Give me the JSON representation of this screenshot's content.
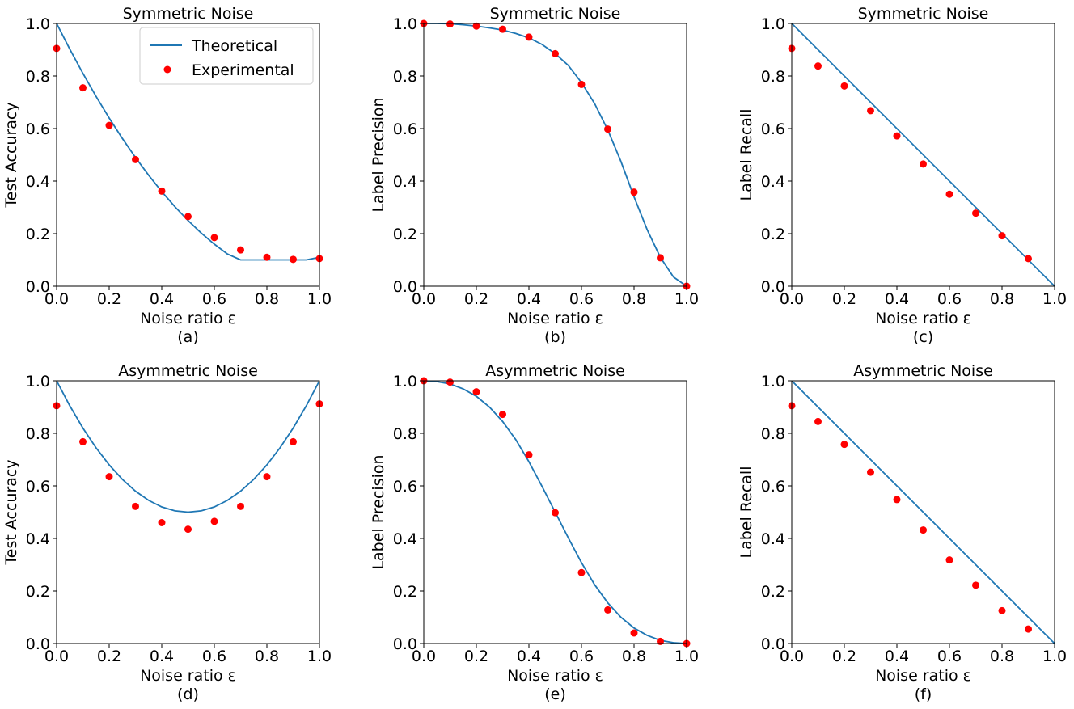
{
  "theme": {
    "theory_color": "#1f77b4",
    "exp_color": "#ff0000"
  },
  "legend": {
    "theory_label": "Theoretical",
    "exp_label": "Experimental"
  },
  "chart_data": [
    {
      "type": "line",
      "title": "Symmetric Noise",
      "xlabel": "Noise ratio ε",
      "ylabel": "Test Accuracy",
      "caption": "(a)",
      "xlim": [
        0.0,
        1.0
      ],
      "ylim": [
        0.0,
        1.0
      ],
      "xticks": [
        "0.0",
        "0.2",
        "0.4",
        "0.6",
        "0.8",
        "1.0"
      ],
      "yticks": [
        "0.0",
        "0.2",
        "0.4",
        "0.6",
        "0.8",
        "1.0"
      ],
      "legend": true,
      "series": [
        {
          "name": "Theoretical",
          "kind": "line",
          "x": [
            0.0,
            0.05,
            0.1,
            0.15,
            0.2,
            0.25,
            0.3,
            0.35,
            0.4,
            0.45,
            0.5,
            0.55,
            0.6,
            0.65,
            0.7,
            0.75,
            0.8,
            0.85,
            0.9,
            0.95,
            1.0
          ],
          "y": [
            1.0,
            0.9025,
            0.81,
            0.7225,
            0.64,
            0.5625,
            0.49,
            0.4225,
            0.36,
            0.3025,
            0.25,
            0.2025,
            0.16,
            0.1225,
            0.1,
            0.1,
            0.1,
            0.1,
            0.1,
            0.1,
            0.11
          ]
        },
        {
          "name": "Experimental",
          "kind": "scatter",
          "x": [
            0.0,
            0.1,
            0.2,
            0.3,
            0.4,
            0.5,
            0.6,
            0.7,
            0.8,
            0.9,
            1.0
          ],
          "y": [
            0.905,
            0.755,
            0.612,
            0.482,
            0.362,
            0.265,
            0.185,
            0.138,
            0.11,
            0.102,
            0.105
          ]
        }
      ]
    },
    {
      "type": "line",
      "title": "Symmetric Noise",
      "xlabel": "Noise ratio ε",
      "ylabel": "Label Precision",
      "caption": "(b)",
      "xlim": [
        0.0,
        1.0
      ],
      "ylim": [
        0.0,
        1.0
      ],
      "xticks": [
        "0.0",
        "0.2",
        "0.4",
        "0.6",
        "0.8",
        "1.0"
      ],
      "yticks": [
        "0.0",
        "0.2",
        "0.4",
        "0.6",
        "0.8",
        "1.0"
      ],
      "legend": false,
      "series": [
        {
          "name": "Theoretical",
          "kind": "line",
          "x": [
            0.0,
            0.05,
            0.1,
            0.15,
            0.2,
            0.25,
            0.3,
            0.35,
            0.4,
            0.45,
            0.5,
            0.55,
            0.6,
            0.65,
            0.7,
            0.75,
            0.8,
            0.85,
            0.9,
            0.95,
            1.0
          ],
          "y": [
            1.0,
            1.0,
            0.999,
            0.995,
            0.99,
            0.983,
            0.975,
            0.962,
            0.945,
            0.92,
            0.885,
            0.84,
            0.775,
            0.695,
            0.595,
            0.475,
            0.34,
            0.215,
            0.11,
            0.035,
            0.0
          ]
        },
        {
          "name": "Experimental",
          "kind": "scatter",
          "x": [
            0.0,
            0.1,
            0.2,
            0.3,
            0.4,
            0.5,
            0.6,
            0.7,
            0.8,
            0.9,
            1.0
          ],
          "y": [
            1.0,
            0.998,
            0.99,
            0.978,
            0.948,
            0.885,
            0.768,
            0.598,
            0.358,
            0.108,
            0.0
          ]
        }
      ]
    },
    {
      "type": "line",
      "title": "Symmetric Noise",
      "xlabel": "Noise ratio ε",
      "ylabel": "Label Recall",
      "caption": "(c)",
      "xlim": [
        0.0,
        1.0
      ],
      "ylim": [
        0.0,
        1.0
      ],
      "xticks": [
        "0.0",
        "0.2",
        "0.4",
        "0.6",
        "0.8",
        "1.0"
      ],
      "yticks": [
        "0.0",
        "0.2",
        "0.4",
        "0.6",
        "0.8",
        "1.0"
      ],
      "legend": false,
      "series": [
        {
          "name": "Theoretical",
          "kind": "line",
          "x": [
            0.0,
            1.0
          ],
          "y": [
            1.0,
            0.0
          ]
        },
        {
          "name": "Experimental",
          "kind": "scatter",
          "x": [
            0.0,
            0.1,
            0.2,
            0.3,
            0.4,
            0.5,
            0.6,
            0.7,
            0.8,
            0.9
          ],
          "y": [
            0.905,
            0.838,
            0.762,
            0.668,
            0.572,
            0.465,
            0.35,
            0.278,
            0.192,
            0.105
          ]
        }
      ]
    },
    {
      "type": "line",
      "title": "Asymmetric Noise",
      "xlabel": "Noise ratio ε",
      "ylabel": "Test Accuracy",
      "caption": "(d)",
      "xlim": [
        0.0,
        1.0
      ],
      "ylim": [
        0.0,
        1.0
      ],
      "xticks": [
        "0.0",
        "0.2",
        "0.4",
        "0.6",
        "0.8",
        "1.0"
      ],
      "yticks": [
        "0.0",
        "0.2",
        "0.4",
        "0.6",
        "0.8",
        "1.0"
      ],
      "legend": false,
      "series": [
        {
          "name": "Theoretical",
          "kind": "line",
          "x": [
            0.0,
            0.05,
            0.1,
            0.15,
            0.2,
            0.25,
            0.3,
            0.35,
            0.4,
            0.45,
            0.5,
            0.55,
            0.6,
            0.65,
            0.7,
            0.75,
            0.8,
            0.85,
            0.9,
            0.95,
            1.0
          ],
          "y": [
            1.0,
            0.905,
            0.82,
            0.745,
            0.68,
            0.625,
            0.58,
            0.545,
            0.52,
            0.505,
            0.5,
            0.505,
            0.52,
            0.545,
            0.58,
            0.625,
            0.68,
            0.745,
            0.82,
            0.905,
            1.0
          ]
        },
        {
          "name": "Experimental",
          "kind": "scatter",
          "x": [
            0.0,
            0.1,
            0.2,
            0.3,
            0.4,
            0.5,
            0.6,
            0.7,
            0.8,
            0.9,
            1.0
          ],
          "y": [
            0.905,
            0.768,
            0.635,
            0.522,
            0.46,
            0.435,
            0.465,
            0.522,
            0.635,
            0.768,
            0.912
          ]
        }
      ]
    },
    {
      "type": "line",
      "title": "Asymmetric Noise",
      "xlabel": "Noise ratio ε",
      "ylabel": "Label Precision",
      "caption": "(e)",
      "xlim": [
        0.0,
        1.0
      ],
      "ylim": [
        0.0,
        1.0
      ],
      "xticks": [
        "0.0",
        "0.2",
        "0.4",
        "0.6",
        "0.8",
        "1.0"
      ],
      "yticks": [
        "0.0",
        "0.2",
        "0.4",
        "0.6",
        "0.8",
        "1.0"
      ],
      "legend": false,
      "series": [
        {
          "name": "Theoretical",
          "kind": "line",
          "x": [
            0.0,
            0.05,
            0.1,
            0.15,
            0.2,
            0.25,
            0.3,
            0.35,
            0.4,
            0.45,
            0.5,
            0.55,
            0.6,
            0.65,
            0.7,
            0.75,
            0.8,
            0.85,
            0.9,
            0.95,
            1.0
          ],
          "y": [
            1.0,
            0.997,
            0.988,
            0.969,
            0.941,
            0.9,
            0.845,
            0.776,
            0.692,
            0.598,
            0.5,
            0.402,
            0.308,
            0.224,
            0.155,
            0.1,
            0.059,
            0.031,
            0.012,
            0.003,
            0.0
          ]
        },
        {
          "name": "Experimental",
          "kind": "scatter",
          "x": [
            0.0,
            0.1,
            0.2,
            0.3,
            0.4,
            0.5,
            0.6,
            0.7,
            0.8,
            0.9,
            1.0
          ],
          "y": [
            1.0,
            0.995,
            0.958,
            0.872,
            0.718,
            0.498,
            0.27,
            0.128,
            0.04,
            0.008,
            0.0
          ]
        }
      ]
    },
    {
      "type": "line",
      "title": "Asymmetric Noise",
      "xlabel": "Noise ratio ε",
      "ylabel": "Label Recall",
      "caption": "(f)",
      "xlim": [
        0.0,
        1.0
      ],
      "ylim": [
        0.0,
        1.0
      ],
      "xticks": [
        "0.0",
        "0.2",
        "0.4",
        "0.6",
        "0.8",
        "1.0"
      ],
      "yticks": [
        "0.0",
        "0.2",
        "0.4",
        "0.6",
        "0.8",
        "1.0"
      ],
      "legend": false,
      "series": [
        {
          "name": "Theoretical",
          "kind": "line",
          "x": [
            0.0,
            1.0
          ],
          "y": [
            1.0,
            0.0
          ]
        },
        {
          "name": "Experimental",
          "kind": "scatter",
          "x": [
            0.0,
            0.1,
            0.2,
            0.3,
            0.4,
            0.5,
            0.6,
            0.7,
            0.8,
            0.9
          ],
          "y": [
            0.905,
            0.845,
            0.758,
            0.652,
            0.548,
            0.432,
            0.318,
            0.222,
            0.125,
            0.055
          ]
        }
      ]
    }
  ]
}
